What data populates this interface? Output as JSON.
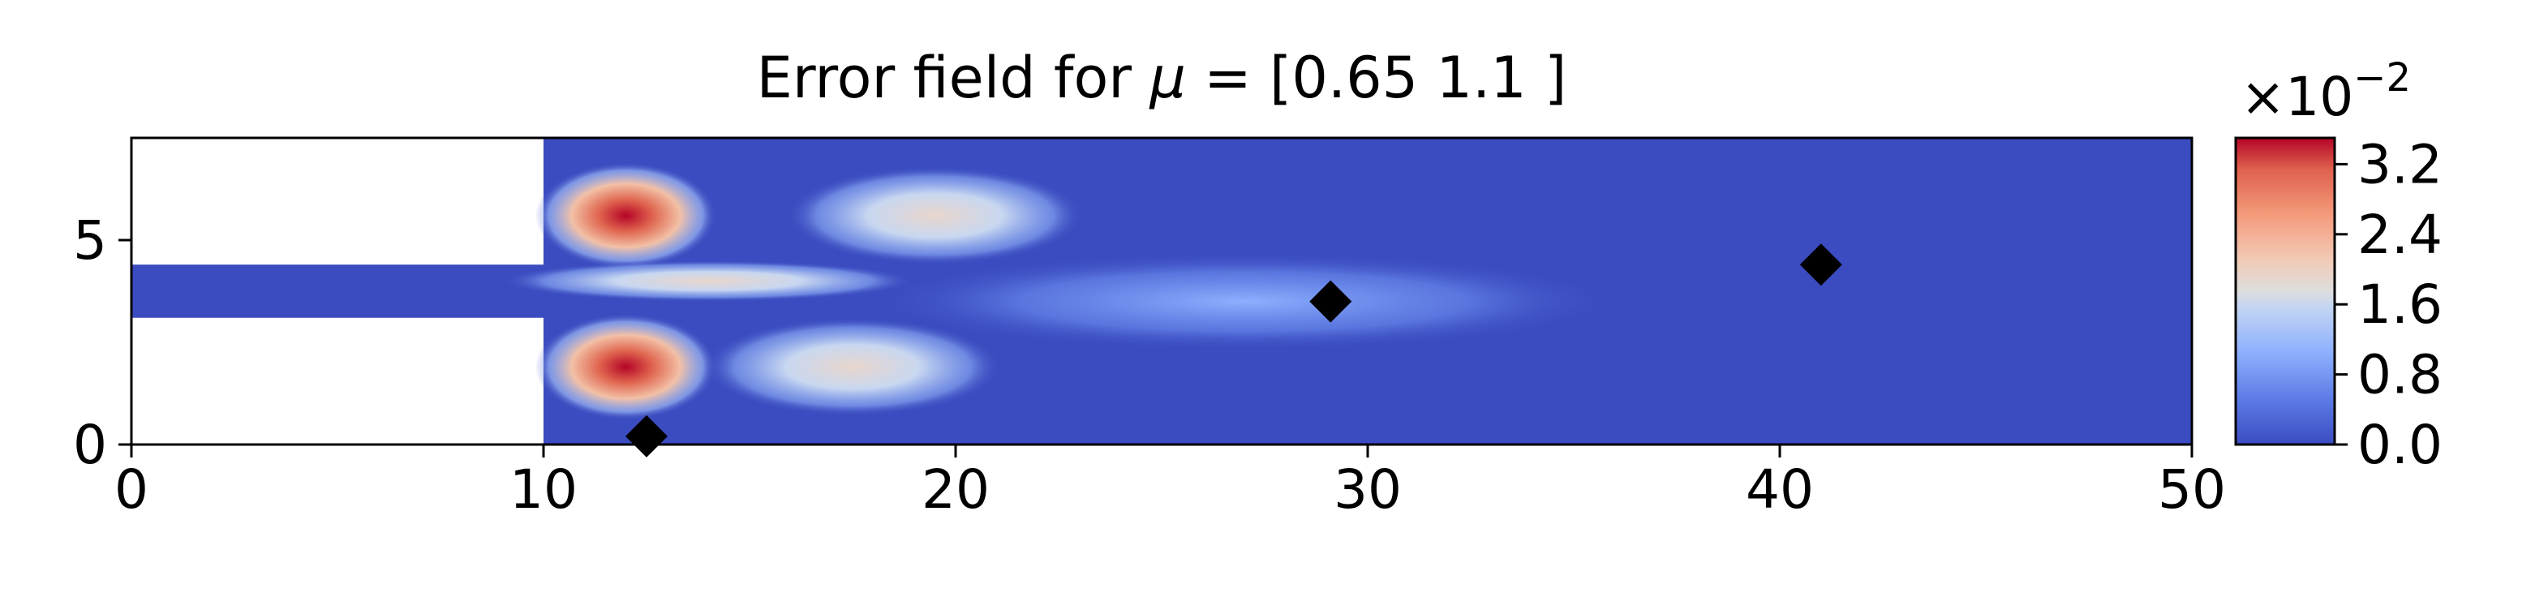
{
  "chart_data": {
    "type": "heatmap",
    "title": "Error field for μ = [0.65 1.1 ]",
    "title_prefix": "Error field for ",
    "title_symbol": "μ",
    "title_suffix": " = [0.65 1.1 ]",
    "xlabel": "",
    "ylabel": "",
    "xlim": [
      0,
      50
    ],
    "ylim": [
      0,
      7.5
    ],
    "x_ticks": [
      0,
      10,
      20,
      30,
      40,
      50
    ],
    "y_ticks": [
      0,
      5
    ],
    "x_tick_labels": [
      "0",
      "10",
      "20",
      "30",
      "40",
      "50"
    ],
    "y_tick_labels": [
      "0",
      "5"
    ],
    "colormap": "coolwarm",
    "colormap_low": "#3b4cc0",
    "colormap_mid": "#dddddd",
    "colormap_high": "#b40426",
    "empty_region_color": "#ffffff",
    "colorbar": {
      "range": [
        0.0,
        3.5
      ],
      "ticks": [
        0.0,
        0.8,
        1.6,
        2.4,
        3.2
      ],
      "tick_labels": [
        "0.0",
        "0.8",
        "1.6",
        "2.4",
        "3.2"
      ],
      "exponent_base": "×10",
      "exponent_power": "−2"
    },
    "domain": {
      "inlet_channel": {
        "x": [
          0,
          10
        ],
        "y": [
          3.1,
          4.4
        ]
      },
      "expansion": {
        "x": [
          10,
          50
        ],
        "y": [
          0,
          7.5
        ]
      }
    },
    "hotspots": [
      {
        "x": 12.0,
        "y": 5.6,
        "value": 3.4
      },
      {
        "x": 12.0,
        "y": 1.9,
        "value": 3.4
      },
      {
        "x": 19.5,
        "y": 5.6,
        "value": 1.5
      },
      {
        "x": 17.5,
        "y": 1.9,
        "value": 1.3
      },
      {
        "x": 14.0,
        "y": 4.0,
        "value": 1.9
      },
      {
        "x": 27.0,
        "y": 3.5,
        "value": 0.6
      }
    ],
    "markers": [
      {
        "x": 12.5,
        "y": 0.2,
        "shape": "diamond",
        "color": "#000000"
      },
      {
        "x": 29.1,
        "y": 3.5,
        "shape": "diamond",
        "color": "#000000"
      },
      {
        "x": 41.0,
        "y": 4.4,
        "shape": "diamond",
        "color": "#000000"
      }
    ]
  }
}
